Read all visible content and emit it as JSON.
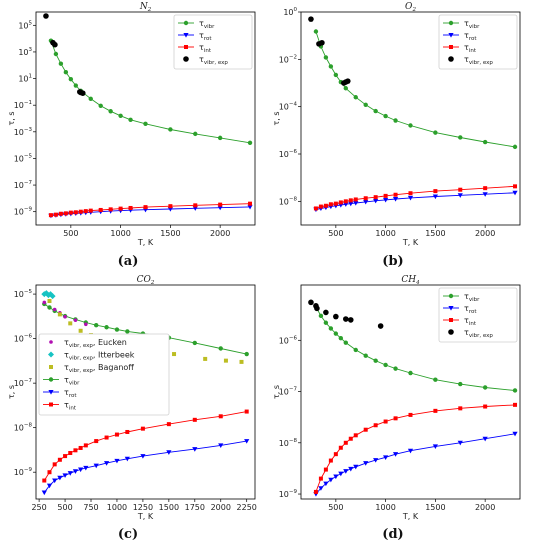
{
  "chart_data": [
    {
      "panel": "a",
      "caption": "(a)",
      "type": "line",
      "title": "N",
      "title_sub": "2",
      "xlabel": "T, K",
      "ylabel": "τ, s",
      "yscale": "log",
      "xlim": [
        150,
        2350
      ],
      "ylim": [
        1e-10,
        1000000.0
      ],
      "xticks": [
        500,
        1000,
        1500,
        2000
      ],
      "yticks_exp": [
        5,
        3,
        1,
        -1,
        -3,
        -5,
        -7,
        -9
      ],
      "legend_position": "upper right",
      "legend": [
        {
          "main": "τ",
          "sub": "vibr",
          "color": "#2ca02c",
          "marker": "circle"
        },
        {
          "main": "τ",
          "sub": "rot",
          "color": "#0000ff",
          "marker": "triangle"
        },
        {
          "main": "τ",
          "sub": "int",
          "color": "#ff0000",
          "marker": "square"
        },
        {
          "main": "τ",
          "sub": "vibr, exp",
          "color": "#000000",
          "marker": "dot"
        }
      ],
      "series": [
        {
          "key": "vibr",
          "color": "#2ca02c",
          "marker": "circle",
          "line": true,
          "x": [
            300,
            350,
            400,
            450,
            500,
            550,
            600,
            700,
            800,
            900,
            1000,
            1100,
            1250,
            1500,
            1750,
            2000,
            2300
          ],
          "y": [
            7000.0,
            700,
            130,
            30,
            9,
            3,
            1.2,
            0.3,
            0.09,
            0.035,
            0.016,
            0.008,
            0.004,
            0.0015,
            0.0007,
            0.00035,
            0.00015
          ]
        },
        {
          "key": "rot",
          "color": "#0000ff",
          "marker": "triangle",
          "line": true,
          "x": [
            300,
            350,
            400,
            450,
            500,
            550,
            600,
            650,
            700,
            800,
            900,
            1000,
            1100,
            1250,
            1500,
            1750,
            2000,
            2300
          ],
          "y": [
            5e-10,
            5.5e-10,
            6e-10,
            6.5e-10,
            7e-10,
            7.5e-10,
            8e-10,
            8.5e-10,
            9e-10,
            1e-09,
            1.1e-09,
            1.2e-09,
            1.3e-09,
            1.4e-09,
            1.6e-09,
            1.8e-09,
            2e-09,
            2.3e-09
          ]
        },
        {
          "key": "int",
          "color": "#ff0000",
          "marker": "square",
          "line": true,
          "x": [
            300,
            350,
            400,
            450,
            500,
            550,
            600,
            650,
            700,
            800,
            900,
            1000,
            1100,
            1250,
            1500,
            1750,
            2000,
            2300
          ],
          "y": [
            5.5e-10,
            6e-10,
            7e-10,
            7.5e-10,
            8.5e-10,
            9e-10,
            1e-09,
            1.1e-09,
            1.2e-09,
            1.35e-09,
            1.5e-09,
            1.7e-09,
            1.9e-09,
            2.2e-09,
            2.6e-09,
            3e-09,
            3.4e-09,
            4e-09
          ]
        },
        {
          "key": "vibr_exp",
          "color": "#000000",
          "marker": "dot",
          "line": false,
          "x": [
            250,
            320,
            340,
            590,
            600,
            620
          ],
          "y": [
            500000.0,
            5000.0,
            3500.0,
            1.0,
            0.9,
            0.8
          ]
        }
      ]
    },
    {
      "panel": "b",
      "caption": "(b)",
      "type": "line",
      "title": "O",
      "title_sub": "2",
      "xlabel": "T, K",
      "ylabel": "τ, s",
      "yscale": "log",
      "xlim": [
        150,
        2350
      ],
      "ylim": [
        1e-09,
        1.0
      ],
      "xticks": [
        500,
        1000,
        1500,
        2000
      ],
      "yticks_exp": [
        0,
        -2,
        -4,
        -6,
        -8
      ],
      "legend_position": "upper right",
      "legend": [
        {
          "main": "τ",
          "sub": "vibr",
          "color": "#2ca02c",
          "marker": "circle"
        },
        {
          "main": "τ",
          "sub": "rot",
          "color": "#0000ff",
          "marker": "triangle"
        },
        {
          "main": "τ",
          "sub": "int",
          "color": "#ff0000",
          "marker": "square"
        },
        {
          "main": "τ",
          "sub": "vibr, exp",
          "color": "#000000",
          "marker": "dot"
        }
      ],
      "series": [
        {
          "key": "vibr",
          "color": "#2ca02c",
          "marker": "circle",
          "line": true,
          "x": [
            300,
            350,
            400,
            450,
            500,
            550,
            600,
            700,
            800,
            900,
            1000,
            1100,
            1250,
            1500,
            1750,
            2000,
            2300
          ],
          "y": [
            0.15,
            0.035,
            0.012,
            0.005,
            0.0022,
            0.0011,
            0.0006,
            0.00025,
            0.00012,
            6.5e-05,
            4e-05,
            2.6e-05,
            1.6e-05,
            8e-06,
            5e-06,
            3.2e-06,
            2e-06
          ]
        },
        {
          "key": "rot",
          "color": "#0000ff",
          "marker": "triangle",
          "line": true,
          "x": [
            300,
            350,
            400,
            450,
            500,
            550,
            600,
            650,
            700,
            800,
            900,
            1000,
            1100,
            1250,
            1500,
            1750,
            2000,
            2300
          ],
          "y": [
            4.5e-09,
            5e-09,
            5.5e-09,
            6e-09,
            6.5e-09,
            7e-09,
            7.5e-09,
            8e-09,
            8.5e-09,
            9.5e-09,
            1.05e-08,
            1.15e-08,
            1.25e-08,
            1.4e-08,
            1.6e-08,
            1.8e-08,
            2e-08,
            2.3e-08
          ]
        },
        {
          "key": "int",
          "color": "#ff0000",
          "marker": "square",
          "line": true,
          "x": [
            300,
            350,
            400,
            450,
            500,
            550,
            600,
            650,
            700,
            800,
            900,
            1000,
            1100,
            1250,
            1500,
            1750,
            2000,
            2300
          ],
          "y": [
            5e-09,
            6e-09,
            6.5e-09,
            7.5e-09,
            8e-09,
            9e-09,
            1e-08,
            1.1e-08,
            1.2e-08,
            1.35e-08,
            1.5e-08,
            1.7e-08,
            1.9e-08,
            2.2e-08,
            2.7e-08,
            3.1e-08,
            3.6e-08,
            4.3e-08
          ]
        },
        {
          "key": "vibr_exp",
          "color": "#000000",
          "marker": "dot",
          "line": false,
          "x": [
            250,
            330,
            360,
            580,
            600,
            620
          ],
          "y": [
            0.5,
            0.045,
            0.05,
            0.001,
            0.0011,
            0.0012
          ]
        }
      ]
    },
    {
      "panel": "c",
      "caption": "(c)",
      "type": "line",
      "title": "CO",
      "title_sub": "2",
      "xlabel": "T, K",
      "ylabel": "τ, s",
      "yscale": "log",
      "xlim": [
        220,
        2330
      ],
      "ylim": [
        2.5e-10,
        1.6e-05
      ],
      "xticks": [
        250,
        500,
        750,
        1000,
        1250,
        1500,
        1750,
        2000,
        2250
      ],
      "yticks_exp": [
        -5,
        -6,
        -7,
        -8,
        -9
      ],
      "legend_position": "lower left",
      "legend": [
        {
          "main": "τ",
          "sub": "vibr, exp",
          "suffix": ", Eucken",
          "color": "#b10fb1",
          "marker": "dot_small"
        },
        {
          "main": "τ",
          "sub": "vibr, exp",
          "suffix": ", Itterbeek",
          "color": "#17c3c3",
          "marker": "diamond"
        },
        {
          "main": "τ",
          "sub": "vibr, exp",
          "suffix": ", Baganoff",
          "color": "#bcbd22",
          "marker": "square"
        },
        {
          "main": "τ",
          "sub": "vibr",
          "suffix": "",
          "color": "#2ca02c",
          "marker": "circle"
        },
        {
          "main": "τ",
          "sub": "rot",
          "suffix": "",
          "color": "#0000ff",
          "marker": "triangle"
        },
        {
          "main": "τ",
          "sub": "int",
          "suffix": "",
          "color": "#ff0000",
          "marker": "square"
        }
      ],
      "series": [
        {
          "key": "vibr",
          "color": "#2ca02c",
          "marker": "circle",
          "line": true,
          "x": [
            300,
            350,
            400,
            500,
            600,
            700,
            800,
            900,
            1000,
            1100,
            1250,
            1500,
            1750,
            2000,
            2250
          ],
          "y": [
            6e-06,
            5e-06,
            4.2e-06,
            3.2e-06,
            2.7e-06,
            2.3e-06,
            2e-06,
            1.8e-06,
            1.6e-06,
            1.45e-06,
            1.3e-06,
            1.05e-06,
            8e-07,
            6e-07,
            4.5e-07
          ]
        },
        {
          "key": "rot",
          "color": "#0000ff",
          "marker": "triangle",
          "line": true,
          "x": [
            300,
            350,
            400,
            450,
            500,
            550,
            600,
            650,
            700,
            800,
            900,
            1000,
            1100,
            1250,
            1500,
            1750,
            2000,
            2250
          ],
          "y": [
            3.5e-10,
            5e-10,
            6.5e-10,
            7.5e-10,
            8.5e-10,
            9.5e-10,
            1.05e-09,
            1.15e-09,
            1.25e-09,
            1.4e-09,
            1.6e-09,
            1.8e-09,
            2e-09,
            2.3e-09,
            2.8e-09,
            3.3e-09,
            4e-09,
            5e-09
          ]
        },
        {
          "key": "int",
          "color": "#ff0000",
          "marker": "square",
          "line": true,
          "x": [
            300,
            350,
            400,
            450,
            500,
            550,
            600,
            650,
            700,
            800,
            900,
            1000,
            1100,
            1250,
            1500,
            1750,
            2000,
            2250
          ],
          "y": [
            6.5e-10,
            1e-09,
            1.5e-09,
            1.9e-09,
            2.3e-09,
            2.7e-09,
            3.1e-09,
            3.5e-09,
            4e-09,
            5e-09,
            6e-09,
            7e-09,
            8e-09,
            9.5e-09,
            1.2e-08,
            1.5e-08,
            1.8e-08,
            2.3e-08
          ]
        },
        {
          "key": "eucken",
          "color": "#b10fb1",
          "marker": "dot_small",
          "line": false,
          "x": [
            300,
            350,
            400,
            450,
            500,
            600,
            700
          ],
          "y": [
            6.5e-06,
            7e-06,
            4.5e-06,
            3.8e-06,
            3.1e-06,
            2.6e-06,
            2.1e-06
          ]
        },
        {
          "key": "itterbeek",
          "color": "#17c3c3",
          "marker": "diamond",
          "line": false,
          "x": [
            300,
            320,
            340,
            360,
            380
          ],
          "y": [
            1e-05,
            1.05e-05,
            9.5e-06,
            1e-05,
            9e-06
          ]
        },
        {
          "key": "baganoff",
          "color": "#bcbd22",
          "marker": "square",
          "line": false,
          "x": [
            350,
            450,
            550,
            650,
            750,
            850,
            1050,
            1100,
            1250,
            1550,
            1850,
            2050,
            2200
          ],
          "y": [
            7e-06,
            3.5e-06,
            2.2e-06,
            1.5e-06,
            1.2e-06,
            1e-06,
            8e-07,
            9e-07,
            6e-07,
            4.5e-07,
            3.5e-07,
            3.2e-07,
            3e-07
          ]
        }
      ]
    },
    {
      "panel": "d",
      "caption": "(d)",
      "type": "line",
      "title": "CH",
      "title_sub": "4",
      "xlabel": "T, K",
      "ylabel": "τ, s",
      "yscale": "log",
      "xlim": [
        150,
        2350
      ],
      "ylim": [
        8e-10,
        1.2e-05
      ],
      "xticks": [
        500,
        1000,
        1500,
        2000
      ],
      "yticks_exp": [
        -6,
        -7,
        -8,
        -9
      ],
      "legend_position": "upper right",
      "legend": [
        {
          "main": "τ",
          "sub": "vibr",
          "color": "#2ca02c",
          "marker": "circle"
        },
        {
          "main": "τ",
          "sub": "rot",
          "color": "#0000ff",
          "marker": "triangle"
        },
        {
          "main": "τ",
          "sub": "int",
          "color": "#ff0000",
          "marker": "square"
        },
        {
          "main": "τ",
          "sub": "vibr, exp",
          "color": "#000000",
          "marker": "dot"
        }
      ],
      "series": [
        {
          "key": "vibr",
          "color": "#2ca02c",
          "marker": "circle",
          "line": true,
          "x": [
            300,
            350,
            400,
            450,
            500,
            550,
            600,
            700,
            800,
            900,
            1000,
            1100,
            1250,
            1500,
            1750,
            2000,
            2300
          ],
          "y": [
            4.5e-06,
            3e-06,
            2.2e-06,
            1.7e-06,
            1.35e-06,
            1.1e-06,
            9e-07,
            6.5e-07,
            5e-07,
            4e-07,
            3.3e-07,
            2.8e-07,
            2.3e-07,
            1.7e-07,
            1.4e-07,
            1.2e-07,
            1.05e-07
          ]
        },
        {
          "key": "rot",
          "color": "#0000ff",
          "marker": "triangle",
          "line": true,
          "x": [
            300,
            350,
            400,
            450,
            500,
            550,
            600,
            650,
            700,
            800,
            900,
            1000,
            1100,
            1250,
            1500,
            1750,
            2000,
            2300
          ],
          "y": [
            1e-09,
            1.3e-09,
            1.6e-09,
            1.9e-09,
            2.2e-09,
            2.5e-09,
            2.8e-09,
            3.1e-09,
            3.4e-09,
            4e-09,
            4.6e-09,
            5.2e-09,
            6e-09,
            7e-09,
            8.5e-09,
            1e-08,
            1.2e-08,
            1.5e-08
          ]
        },
        {
          "key": "int",
          "color": "#ff0000",
          "marker": "square",
          "line": true,
          "x": [
            300,
            350,
            400,
            450,
            500,
            550,
            600,
            650,
            700,
            800,
            900,
            1000,
            1100,
            1250,
            1500,
            1750,
            2000,
            2300
          ],
          "y": [
            1.1e-09,
            2e-09,
            3e-09,
            4.5e-09,
            6e-09,
            8e-09,
            1e-08,
            1.2e-08,
            1.4e-08,
            1.8e-08,
            2.2e-08,
            2.6e-08,
            3e-08,
            3.5e-08,
            4.2e-08,
            4.7e-08,
            5.1e-08,
            5.5e-08
          ]
        },
        {
          "key": "vibr_exp",
          "color": "#000000",
          "marker": "dot",
          "line": false,
          "x": [
            250,
            300,
            310,
            400,
            500,
            600,
            650,
            950
          ],
          "y": [
            5.5e-06,
            4.7e-06,
            4.2e-06,
            3.5e-06,
            2.9e-06,
            2.6e-06,
            2.5e-06,
            1.9e-06
          ]
        }
      ]
    }
  ]
}
